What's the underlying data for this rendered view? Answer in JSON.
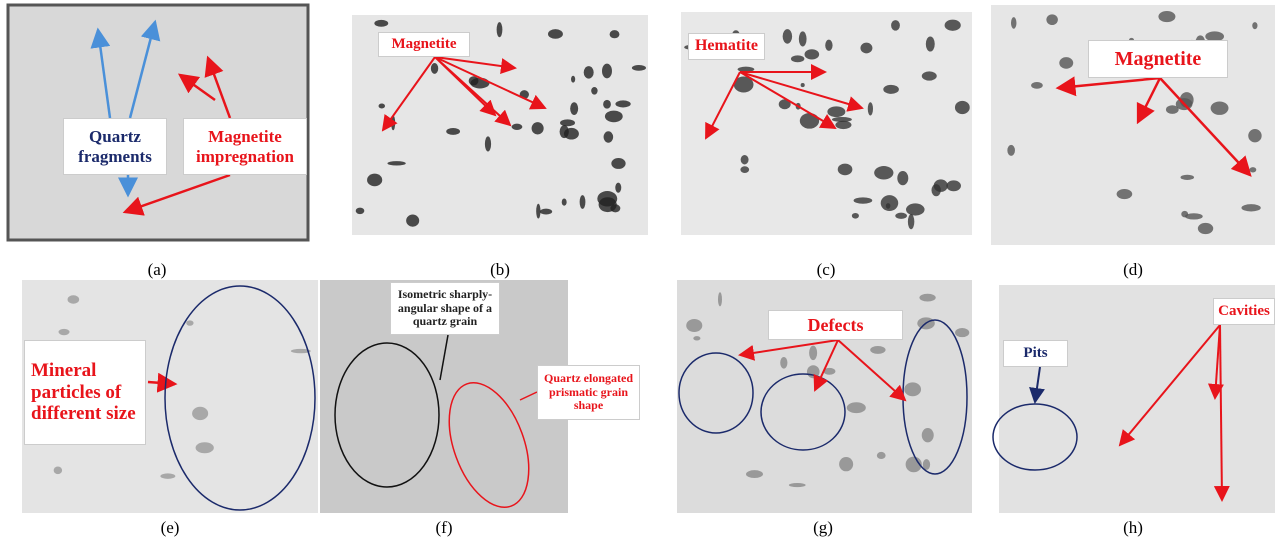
{
  "panels": [
    {
      "caption": "(a)",
      "labels": [
        "Quartz fragments",
        "Magnetite impregnation"
      ]
    },
    {
      "caption": "(b)",
      "labels": [
        "Magnetite"
      ]
    },
    {
      "caption": "(c)",
      "labels": [
        "Hematite"
      ]
    },
    {
      "caption": "(d)",
      "labels": [
        "Magnetite"
      ]
    },
    {
      "caption": "(e)",
      "labels": [
        "Mineral particles of different size"
      ]
    },
    {
      "caption": "(f)",
      "labels": [
        "Isometric sharply-angular shape of a quartz grain",
        "Quartz elongated prismatic grain shape"
      ]
    },
    {
      "caption": "(g)",
      "labels": [
        "Defects"
      ]
    },
    {
      "caption": "(h)",
      "labels": [
        "Pits",
        "Cavities"
      ]
    }
  ]
}
